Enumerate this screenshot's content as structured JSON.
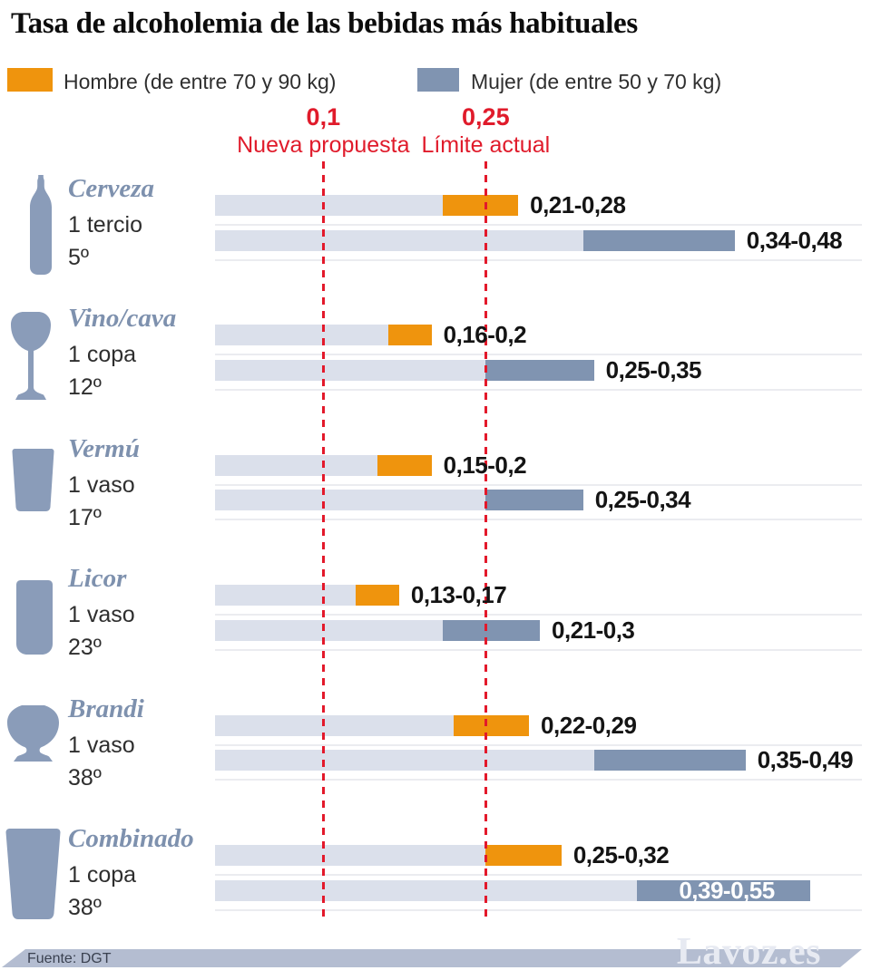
{
  "title": "Tasa de alcoholemia de las bebidas más habituales",
  "legend": {
    "hombre": {
      "label": "Hombre (de entre 70 y 90 kg)",
      "color": "#EF940D"
    },
    "mujer": {
      "label": "Mujer (de entre 50 y 70 kg)",
      "color": "#8094B1"
    }
  },
  "colors": {
    "hombre": "#EF940D",
    "mujer": "#8094B1",
    "bar_track": "#DBE0EB",
    "reference": "#E3192B",
    "icon": "#8A9CB9",
    "drink_name": "#7E91AE",
    "value_text": "#141414",
    "footer_strip": "#B4BDD1"
  },
  "chart_data": {
    "type": "bar",
    "orientation": "horizontal",
    "title": "Tasa de alcoholemia de las bebidas más habituales",
    "xlim": [
      0,
      0.6
    ],
    "grid": false,
    "legend_position": "top",
    "series": [
      {
        "name": "Hombre (de entre 70 y 90 kg)",
        "color": "#EF940D"
      },
      {
        "name": "Mujer (de entre 50 y 70 kg)",
        "color": "#8094B1"
      }
    ],
    "reference_lines": [
      {
        "value": 0.1,
        "value_label": "0,1",
        "label": "Nueva propuesta",
        "color": "#E3192B",
        "style": "dashed"
      },
      {
        "value": 0.25,
        "value_label": "0,25",
        "label": "Límite actual",
        "color": "#E3192B",
        "style": "dashed"
      }
    ],
    "rows": [
      {
        "drink": "Cerveza",
        "serving": "1 tercio",
        "strength": "5º",
        "icon": "beer-bottle-icon",
        "hombre": {
          "min": 0.21,
          "max": 0.28,
          "label": "0,21-0,28"
        },
        "mujer": {
          "min": 0.34,
          "max": 0.48,
          "label": "0,34-0,48"
        }
      },
      {
        "drink": "Vino/cava",
        "serving": "1 copa",
        "strength": "12º",
        "icon": "wine-glass-icon",
        "hombre": {
          "min": 0.16,
          "max": 0.2,
          "label": "0,16-0,2"
        },
        "mujer": {
          "min": 0.25,
          "max": 0.35,
          "label": "0,25-0,35"
        }
      },
      {
        "drink": "Vermú",
        "serving": "1 vaso",
        "strength": "17º",
        "icon": "vermouth-glass-icon",
        "hombre": {
          "min": 0.15,
          "max": 0.2,
          "label": "0,15-0,2"
        },
        "mujer": {
          "min": 0.25,
          "max": 0.34,
          "label": "0,25-0,34"
        }
      },
      {
        "drink": "Licor",
        "serving": "1 vaso",
        "strength": "23º",
        "icon": "liquor-glass-icon",
        "hombre": {
          "min": 0.13,
          "max": 0.17,
          "label": "0,13-0,17"
        },
        "mujer": {
          "min": 0.21,
          "max": 0.3,
          "label": "0,21-0,3"
        }
      },
      {
        "drink": "Brandi",
        "serving": "1 vaso",
        "strength": "38º",
        "icon": "brandy-snifter-icon",
        "hombre": {
          "min": 0.22,
          "max": 0.29,
          "label": "0,22-0,29"
        },
        "mujer": {
          "min": 0.35,
          "max": 0.49,
          "label": "0,35-0,49"
        }
      },
      {
        "drink": "Combinado",
        "serving": "1 copa",
        "strength": "38º",
        "icon": "highball-glass-icon",
        "hombre": {
          "min": 0.25,
          "max": 0.32,
          "label": "0,25-0,32"
        },
        "mujer": {
          "min": 0.39,
          "max": 0.55,
          "label": "0,39-0,55",
          "label_inside": true
        }
      }
    ]
  },
  "footer": {
    "source": "Fuente:  DGT",
    "brand": "Lavoz.es"
  }
}
